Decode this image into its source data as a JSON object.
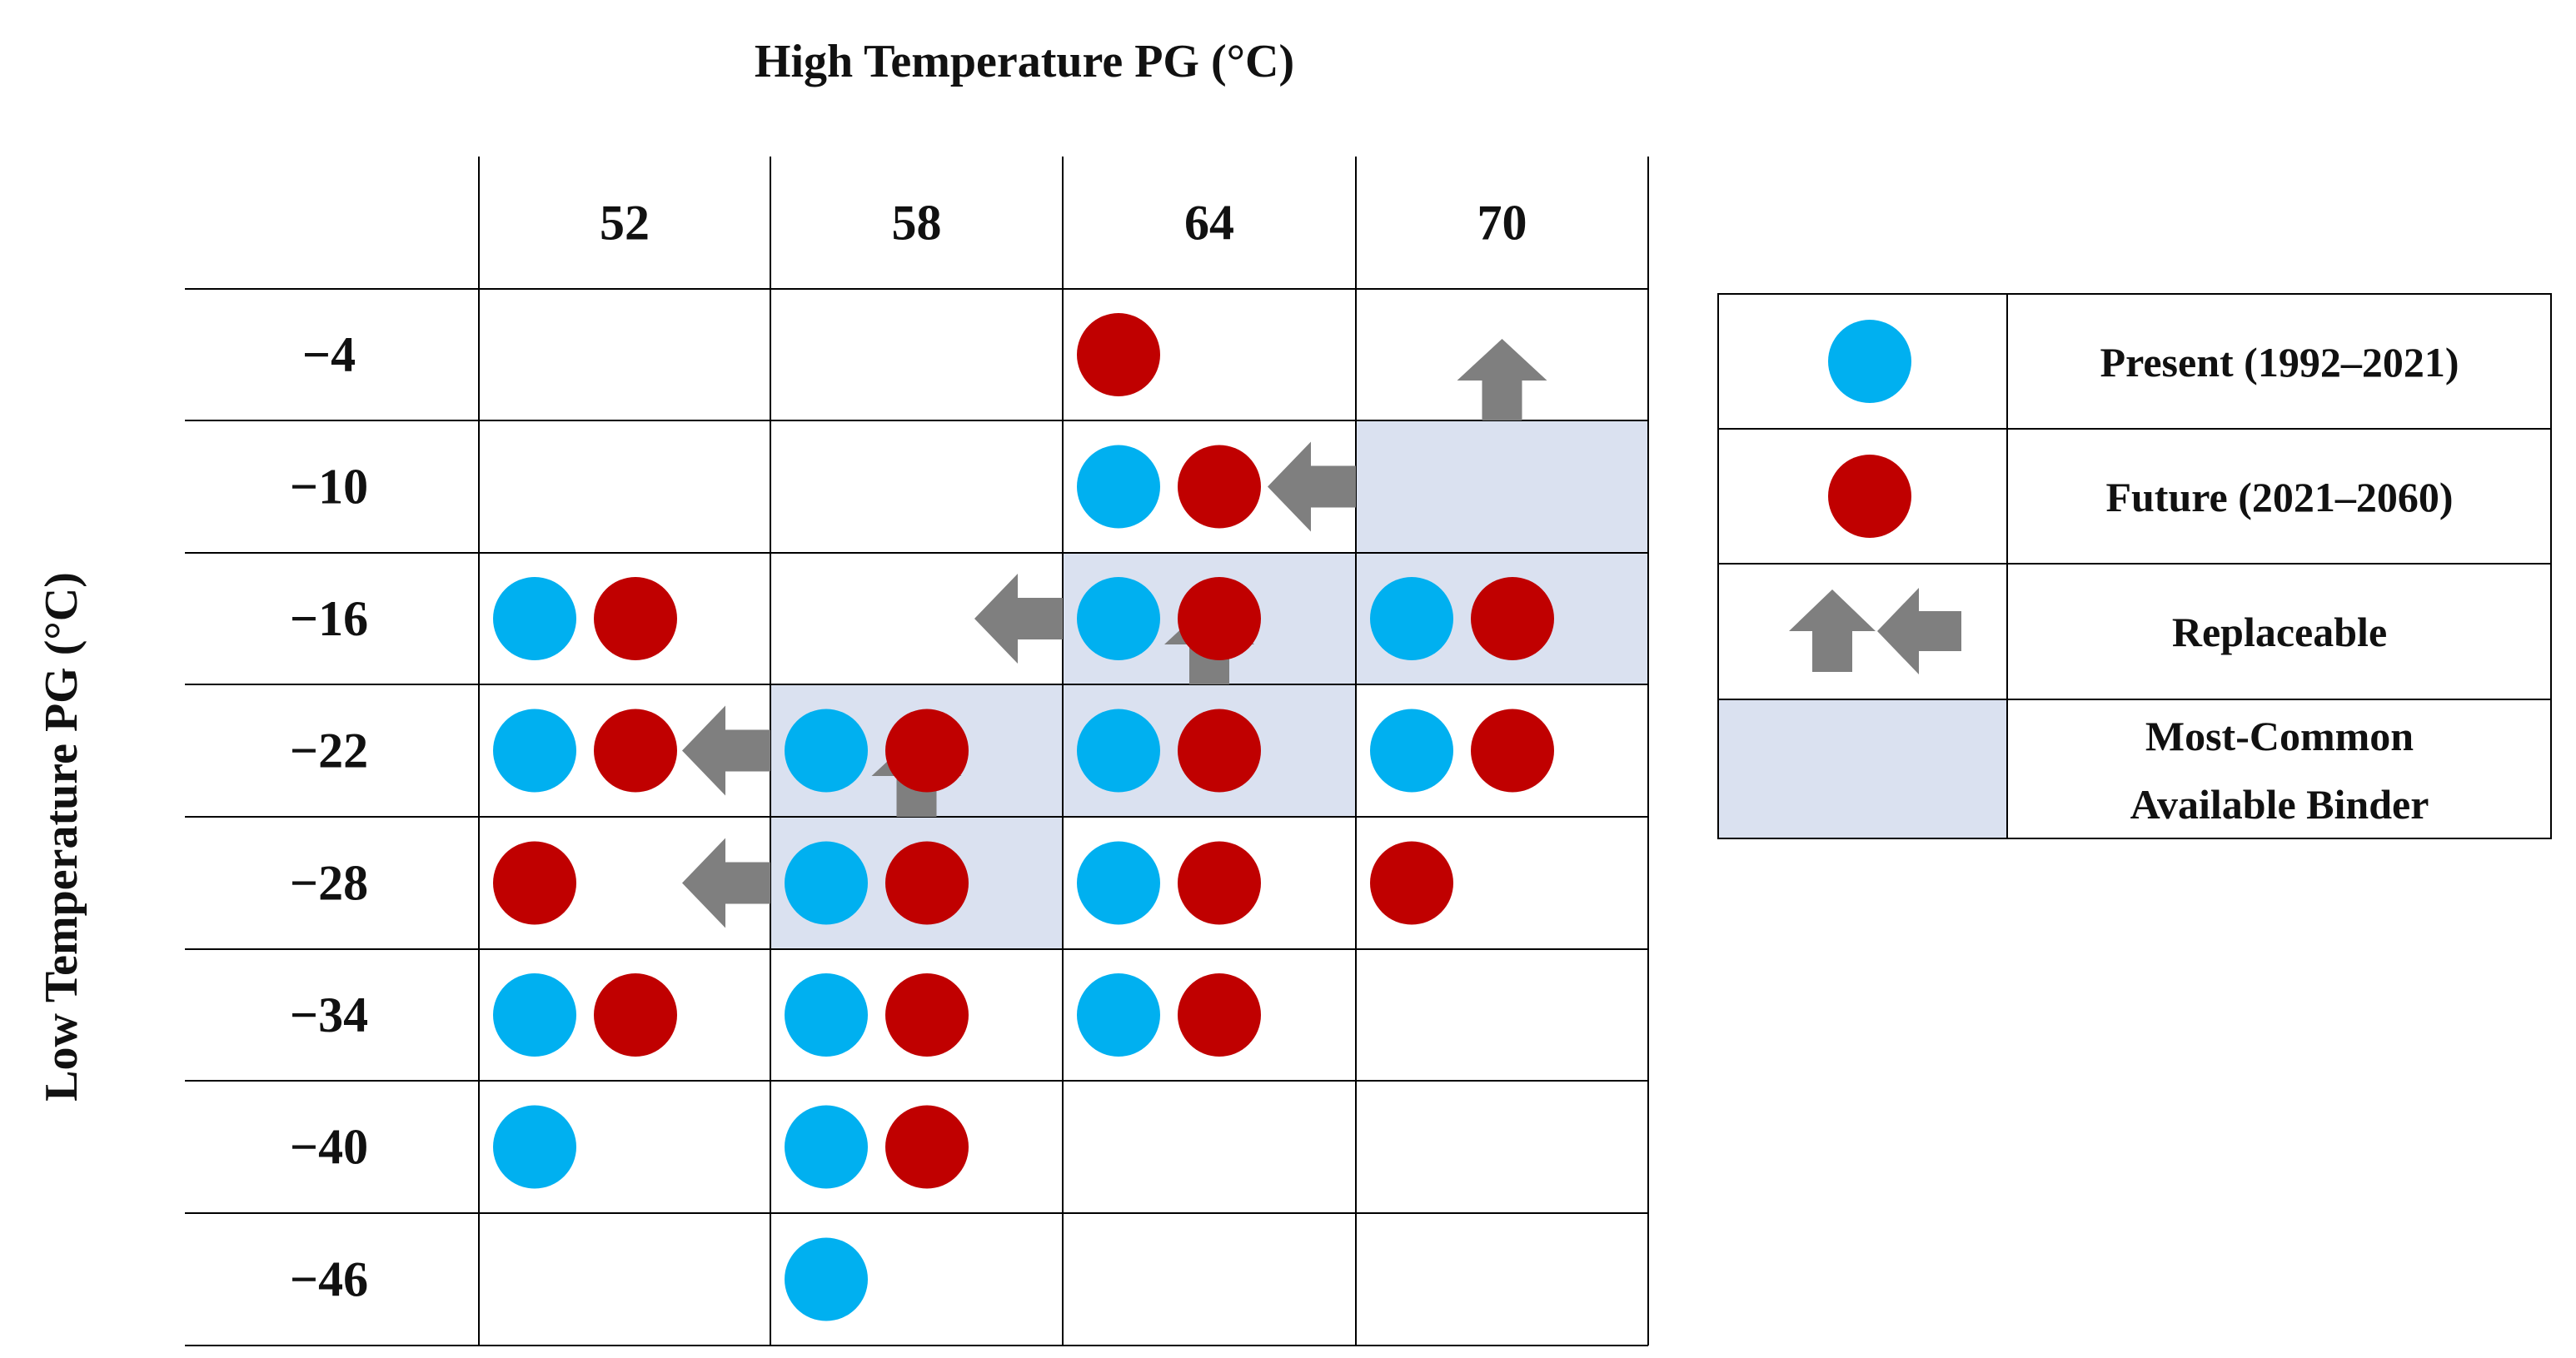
{
  "x_title": "High Temperature PG (°C)",
  "y_title": "Low Temperature PG (°C)",
  "high_grades": [
    "52",
    "58",
    "64",
    "70"
  ],
  "low_grades": [
    "−4",
    "−10",
    "−16",
    "−22",
    "−28",
    "−34",
    "−40",
    "−46"
  ],
  "colors": {
    "present": "#00B0F0",
    "future": "#C00000",
    "arrow": "#7F7F7F",
    "highlight": "#DAE1F0",
    "grid": "#000000"
  },
  "legend": {
    "present": "Present (1992–2021)",
    "future": "Future (2021–2060)",
    "replaceable": "Replaceable",
    "most_common_line1": "Most-Common",
    "most_common_line2": "Available Binder"
  },
  "cells": [
    {
      "high": "64",
      "low": "−4",
      "present": false,
      "future": true
    },
    {
      "high": "64",
      "low": "−10",
      "present": true,
      "future": true
    },
    {
      "high": "52",
      "low": "−16",
      "present": true,
      "future": true
    },
    {
      "high": "64",
      "low": "−16",
      "present": true,
      "future": true
    },
    {
      "high": "70",
      "low": "−16",
      "present": true,
      "future": true
    },
    {
      "high": "52",
      "low": "−22",
      "present": true,
      "future": true
    },
    {
      "high": "58",
      "low": "−22",
      "present": true,
      "future": true
    },
    {
      "high": "64",
      "low": "−22",
      "present": true,
      "future": true
    },
    {
      "high": "70",
      "low": "−22",
      "present": true,
      "future": true
    },
    {
      "high": "52",
      "low": "−28",
      "present": false,
      "future": true
    },
    {
      "high": "58",
      "low": "−28",
      "present": true,
      "future": true
    },
    {
      "high": "64",
      "low": "−28",
      "present": true,
      "future": true
    },
    {
      "high": "70",
      "low": "−28",
      "present": false,
      "future": true
    },
    {
      "high": "52",
      "low": "−34",
      "present": true,
      "future": true
    },
    {
      "high": "58",
      "low": "−34",
      "present": true,
      "future": true
    },
    {
      "high": "64",
      "low": "−34",
      "present": true,
      "future": true
    },
    {
      "high": "52",
      "low": "−40",
      "present": true,
      "future": false
    },
    {
      "high": "58",
      "low": "−40",
      "present": true,
      "future": true
    },
    {
      "high": "58",
      "low": "−46",
      "present": true,
      "future": false
    }
  ],
  "most_common": [
    {
      "high": "70",
      "low": "−10"
    },
    {
      "high": "64",
      "low": "−16"
    },
    {
      "high": "70",
      "low": "−16"
    },
    {
      "high": "58",
      "low": "−22"
    },
    {
      "high": "64",
      "low": "−22"
    },
    {
      "high": "58",
      "low": "−28"
    }
  ],
  "replaceable": [
    {
      "high": "70",
      "low": "−4",
      "dir": "up"
    },
    {
      "high": "70",
      "low": "−10",
      "dir": "left"
    },
    {
      "high": "64",
      "low": "−16",
      "dir": "up"
    },
    {
      "high": "64",
      "low": "−16",
      "dir": "left"
    },
    {
      "high": "58",
      "low": "−22",
      "dir": "up"
    },
    {
      "high": "58",
      "low": "−22",
      "dir": "left"
    },
    {
      "high": "58",
      "low": "−28",
      "dir": "left"
    }
  ]
}
